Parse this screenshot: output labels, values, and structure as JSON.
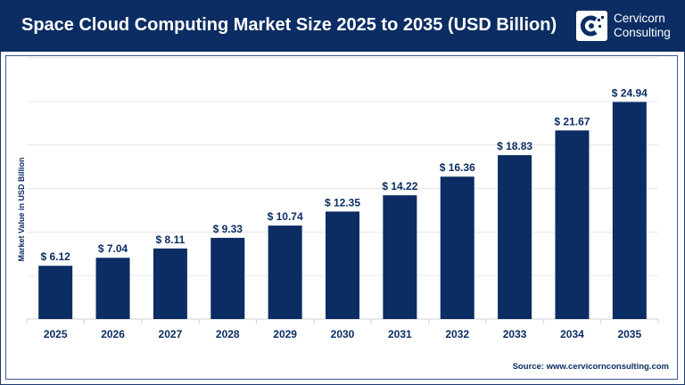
{
  "header": {
    "title": "Space Cloud Computing Market Size 2025 to 2035 (USD Billion)",
    "logo_line1": "Cervicorn",
    "logo_line2": "Consulting"
  },
  "source": "Source: www.cervicornconsulting.com",
  "chart_data": {
    "type": "bar",
    "title": "Space Cloud Computing Market Size 2025 to 2035 (USD Billion)",
    "ylabel": "Market Value in USD Billion",
    "xlabel": "",
    "categories": [
      "2025",
      "2026",
      "2027",
      "2028",
      "2029",
      "2030",
      "2031",
      "2032",
      "2033",
      "2034",
      "2035"
    ],
    "values": [
      6.12,
      7.04,
      8.11,
      9.33,
      10.74,
      12.35,
      14.22,
      16.36,
      18.83,
      21.67,
      24.94
    ],
    "labels": [
      "$ 6.12",
      "$ 7.04",
      "$ 8.11",
      "$ 9.33",
      "$ 10.74",
      "$ 12.35",
      "$ 14.22",
      "$ 16.36",
      "$ 18.83",
      "$ 21.67",
      "$ 24.94"
    ],
    "ylim": [
      0,
      30
    ],
    "grid": true,
    "bar_color": "#0b2d63"
  }
}
